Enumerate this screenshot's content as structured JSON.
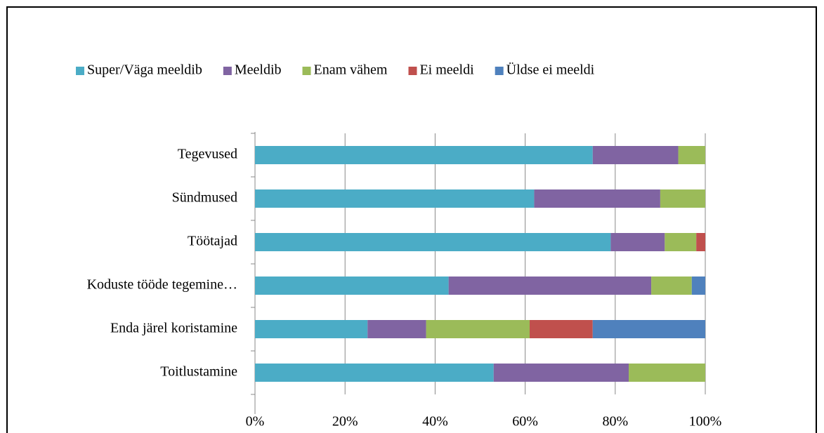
{
  "chart_data": {
    "type": "stacked_barh",
    "categories": [
      "Tegevused",
      "Sündmused",
      "Töötajad",
      "Koduste tööde tegemine…",
      "Enda järel koristamine",
      "Toitlustamine"
    ],
    "series": [
      {
        "name": "Super/Väga meeldib",
        "color": "#4bacc6",
        "values": [
          75,
          62,
          79,
          43,
          25,
          53
        ]
      },
      {
        "name": "Meeldib",
        "color": "#8064a2",
        "values": [
          19,
          28,
          12,
          45,
          13,
          30
        ]
      },
      {
        "name": "Enam vähem",
        "color": "#9bbb59",
        "values": [
          6,
          10,
          7,
          9,
          23,
          17
        ]
      },
      {
        "name": "Ei meeldi",
        "color": "#c0504d",
        "values": [
          0,
          0,
          2,
          0,
          14,
          0
        ]
      },
      {
        "name": "Üldse ei meeldi",
        "color": "#4f81bd",
        "values": [
          0,
          0,
          0,
          3,
          25,
          0
        ]
      }
    ],
    "xlim": [
      0,
      100
    ],
    "xticks": [
      {
        "value": 0,
        "label": "0%"
      },
      {
        "value": 20,
        "label": "20%"
      },
      {
        "value": 40,
        "label": "40%"
      },
      {
        "value": 60,
        "label": "60%"
      },
      {
        "value": 80,
        "label": "80%"
      },
      {
        "value": 100,
        "label": "100%"
      }
    ],
    "grid": true,
    "legend": "top"
  }
}
